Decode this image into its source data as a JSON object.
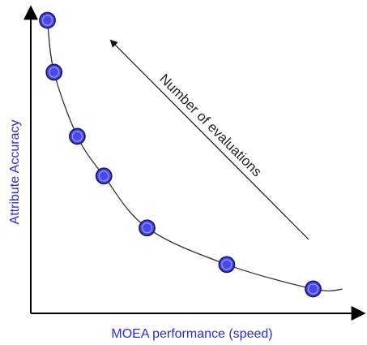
{
  "chart_data": {
    "type": "scatter",
    "xlabel": "MOEA performance (speed)",
    "ylabel": "Attribute Accuracy",
    "annotation": "Number of evaluations",
    "tick_labels_shown": false,
    "grid": false,
    "points": [
      {
        "x": 0.05,
        "y": 0.96
      },
      {
        "x": 0.07,
        "y": 0.79
      },
      {
        "x": 0.14,
        "y": 0.58
      },
      {
        "x": 0.22,
        "y": 0.45
      },
      {
        "x": 0.35,
        "y": 0.28
      },
      {
        "x": 0.59,
        "y": 0.16
      },
      {
        "x": 0.85,
        "y": 0.08
      }
    ],
    "curve_fit": true,
    "colors": {
      "marker_fill": "#4a4aec",
      "marker_stroke": "#1a1a6a",
      "axis_label": "#2b2bd6",
      "curve": "#333333",
      "axes": "#000000"
    }
  }
}
